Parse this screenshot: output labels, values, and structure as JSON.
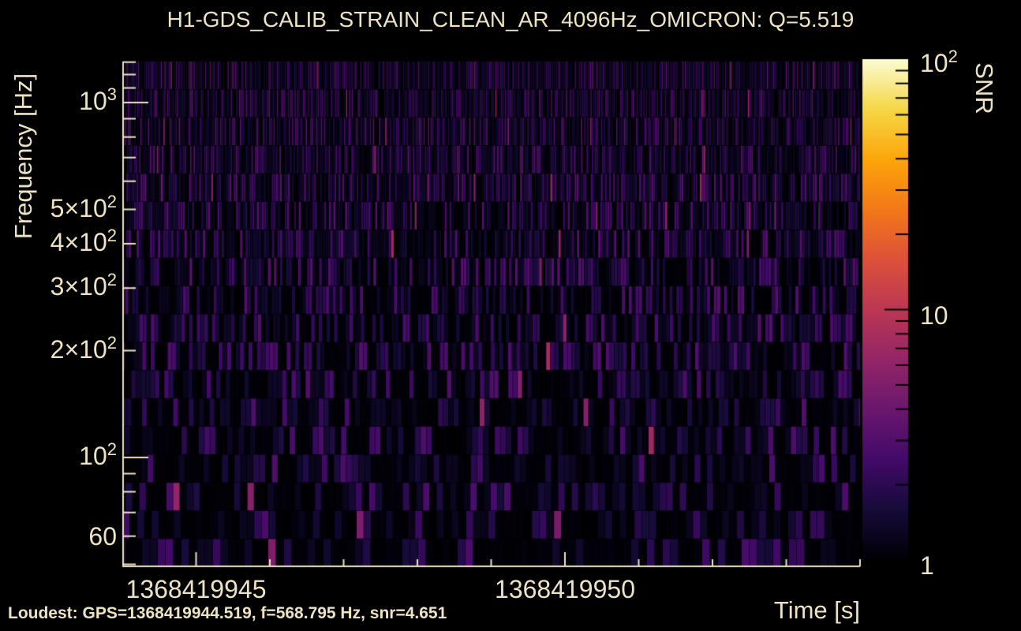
{
  "colors": {
    "background": "#000000",
    "text": "#EDE3C2",
    "axis": "#EDE3C2",
    "colorbar_tick": "#000000"
  },
  "chart_data": {
    "type": "heatmap",
    "title": "H1-GDS_CALIB_STRAIN_CLEAN_AR_4096Hz_OMICRON: Q=5.519",
    "xlabel": "Time [s]",
    "ylabel": "Frequency [Hz]",
    "colorbar_label": "SNR",
    "x_axis": {
      "scale": "linear",
      "range": [
        1368419944,
        1368419954
      ],
      "major_ticks": [
        {
          "v": 1368419945,
          "label": "1368419945"
        },
        {
          "v": 1368419950,
          "label": "1368419950"
        }
      ],
      "minor_ticks": [
        1368419945,
        1368419946,
        1368419947,
        1368419948,
        1368419949,
        1368419951,
        1368419952,
        1368419953,
        1368419954
      ],
      "minor_tick_step_s": 1
    },
    "y_axis": {
      "scale": "log",
      "range": [
        49.1,
        1305
      ],
      "labeled_ticks": [
        {
          "v": 1000,
          "m": "10",
          "e": "3"
        },
        {
          "v": 500,
          "m": "5×10",
          "e": "2"
        },
        {
          "v": 400,
          "m": "4×10",
          "e": "2"
        },
        {
          "v": 300,
          "m": "3×10",
          "e": "2"
        },
        {
          "v": 200,
          "m": "2×10",
          "e": "2"
        },
        {
          "v": 100,
          "m": "10",
          "e": "2"
        },
        {
          "v": 60,
          "m": "60",
          "e": ""
        }
      ],
      "major_ticks": [
        100,
        1000
      ],
      "minor_ticks": [
        50,
        60,
        70,
        80,
        90,
        200,
        300,
        400,
        500,
        600,
        700,
        800,
        900,
        1100,
        1200,
        1300
      ]
    },
    "colorbar": {
      "scale": "log",
      "range": [
        1,
        100
      ],
      "labeled_ticks": [
        {
          "v": 100,
          "m": "10",
          "e": "2"
        },
        {
          "v": 10,
          "m": "10",
          "e": ""
        },
        {
          "v": 1,
          "m": "1",
          "e": ""
        }
      ],
      "major_ticks": [
        10
      ],
      "minor_ticks": [
        2,
        3,
        4,
        5,
        6,
        7,
        8,
        9,
        20,
        30,
        40,
        50,
        60,
        70,
        80,
        90
      ],
      "colormap": "inferno",
      "stops": [
        [
          0.0,
          [
            0,
            0,
            4
          ]
        ],
        [
          0.1,
          [
            22,
            11,
            57
          ]
        ],
        [
          0.2,
          [
            66,
            10,
            104
          ]
        ],
        [
          0.3,
          [
            106,
            23,
            110
          ]
        ],
        [
          0.4,
          [
            147,
            38,
            103
          ]
        ],
        [
          0.5,
          [
            188,
            55,
            84
          ]
        ],
        [
          0.6,
          [
            221,
            81,
            58
          ]
        ],
        [
          0.7,
          [
            243,
            120,
            25
          ]
        ],
        [
          0.8,
          [
            252,
            166,
            10
          ]
        ],
        [
          0.9,
          [
            246,
            215,
            70
          ]
        ],
        [
          1.0,
          [
            252,
            252,
            212
          ]
        ]
      ]
    },
    "loudest_annotation": "Loudest: GPS=1368419944.519, f=568.795 Hz, snr=4.651",
    "loudest": {
      "gps": 1368419944.519,
      "frequency_hz": 568.795,
      "snr": 4.651
    },
    "content_summary": "Dense Omicron Q-transform tile map of detector noise over a 10 s window; vertical stripes of low-SNR tiles (SNR ~1-5, dark purple on black), tile duration increasing toward low frequency; no loud triggers, loudest tile snr=4.651.",
    "tile_generation": {
      "rows": 18,
      "seed": 20230514
    }
  }
}
